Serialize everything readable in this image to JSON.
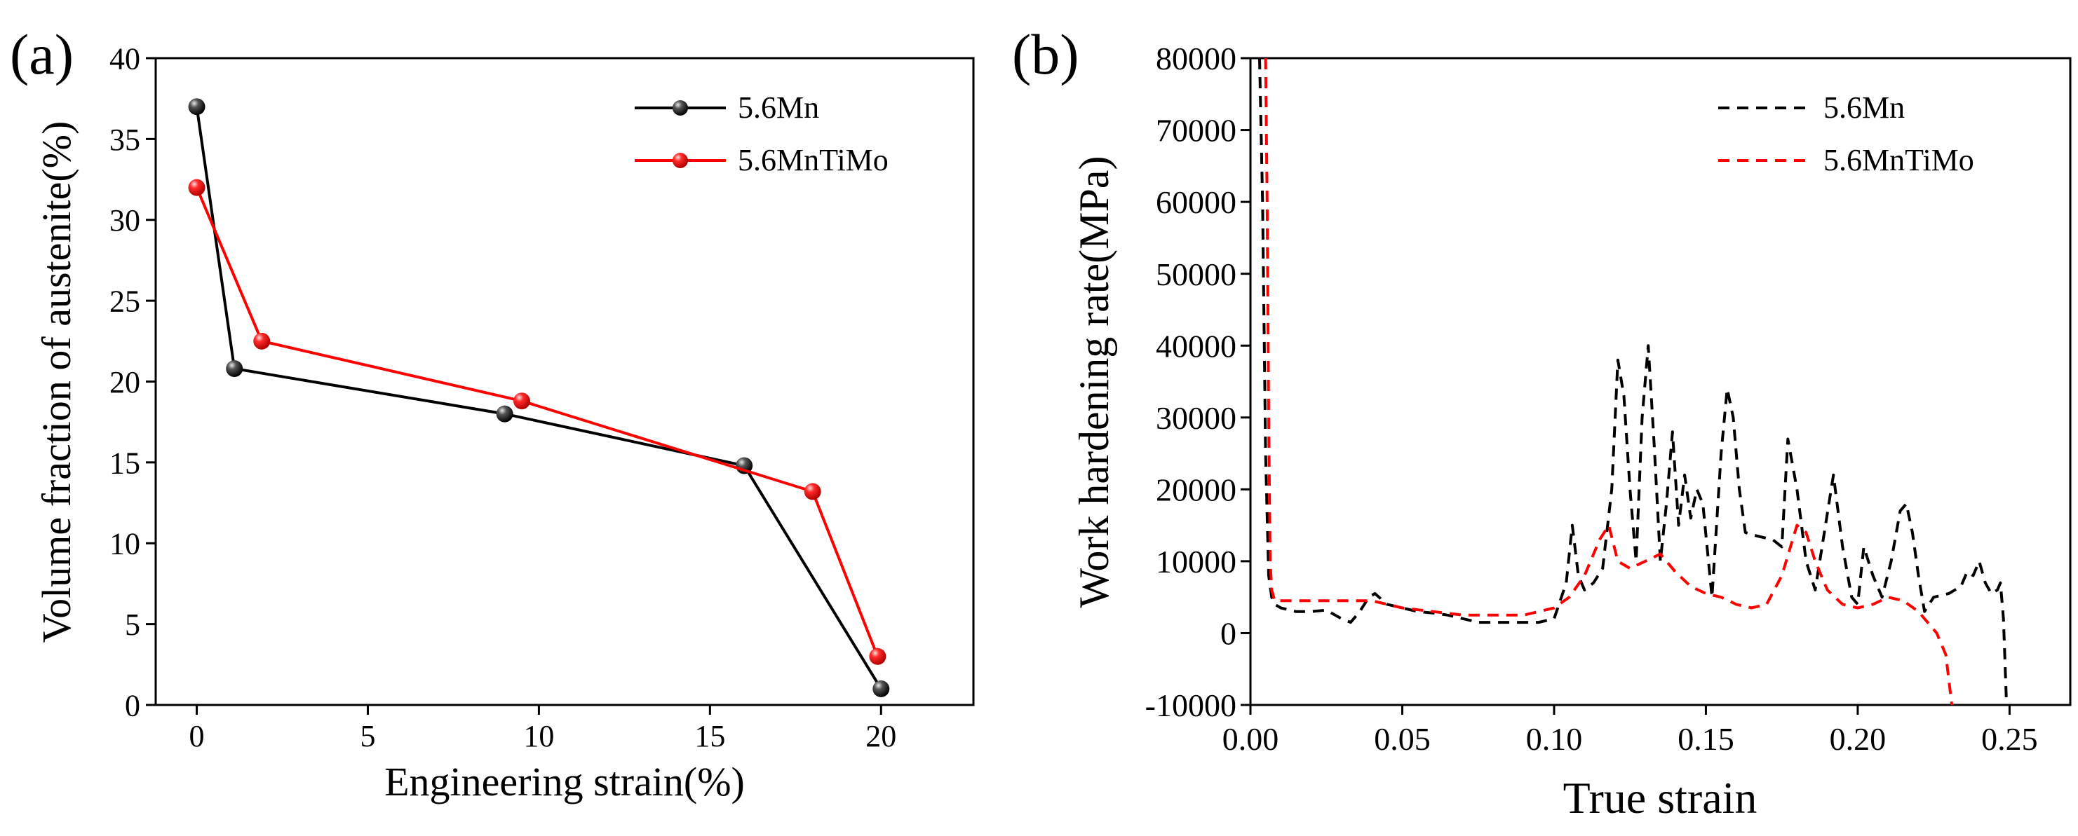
{
  "chart_data": [
    {
      "type": "line",
      "panel_label": "(a)",
      "xlabel": "Engineering strain(%)",
      "ylabel": "Volume fraction of austenite(%)",
      "xlim": [
        -1.2,
        22.7
      ],
      "ylim": [
        0,
        40
      ],
      "xticks": [
        0,
        5,
        10,
        15,
        20
      ],
      "yticks": [
        0,
        5,
        10,
        15,
        20,
        25,
        30,
        35,
        40
      ],
      "xtick_labels": [
        "0",
        "5",
        "10",
        "15",
        "20"
      ],
      "ytick_labels": [
        "0",
        "5",
        "10",
        "15",
        "20",
        "25",
        "30",
        "35",
        "40"
      ],
      "legend": {
        "position": "top-right",
        "entries": [
          "5.6Mn",
          "5.6MnTiMo"
        ]
      },
      "series": [
        {
          "name": "5.6Mn",
          "color": "#000000",
          "marker": "sphere",
          "x": [
            0,
            1.1,
            9,
            16,
            20
          ],
          "y": [
            37,
            20.8,
            18,
            14.8,
            1
          ]
        },
        {
          "name": "5.6MnTiMo",
          "color": "#ff0000",
          "marker": "sphere",
          "x": [
            0,
            1.9,
            9.5,
            18,
            19.9
          ],
          "y": [
            32,
            22.5,
            18.8,
            13.2,
            3
          ]
        }
      ]
    },
    {
      "type": "line",
      "panel_label": "(b)",
      "xlabel": "True strain",
      "ylabel": "Work hardening rate(MPa)",
      "xlim": [
        0,
        0.27
      ],
      "ylim": [
        -10000,
        80000
      ],
      "xticks": [
        0,
        0.05,
        0.1,
        0.15,
        0.2,
        0.25
      ],
      "yticks": [
        -10000,
        0,
        10000,
        20000,
        30000,
        40000,
        50000,
        60000,
        70000,
        80000
      ],
      "xtick_labels": [
        "0.00",
        "0.05",
        "0.10",
        "0.15",
        "0.20",
        "0.25"
      ],
      "ytick_labels": [
        "-10000",
        "0",
        "10000",
        "20000",
        "30000",
        "40000",
        "50000",
        "60000",
        "70000",
        "80000"
      ],
      "legend": {
        "position": "top-right",
        "entries": [
          "5.6Mn",
          "5.6MnTiMo"
        ]
      },
      "series": [
        {
          "name": "5.6Mn",
          "color": "#000000",
          "style": "dashed",
          "x": [
            0.003,
            0.004,
            0.005,
            0.006,
            0.007,
            0.008,
            0.01,
            0.015,
            0.02,
            0.025,
            0.03,
            0.033,
            0.036,
            0.039,
            0.041,
            0.045,
            0.05,
            0.055,
            0.06,
            0.065,
            0.07,
            0.075,
            0.08,
            0.085,
            0.09,
            0.095,
            0.1,
            0.104,
            0.106,
            0.108,
            0.11,
            0.113,
            0.116,
            0.119,
            0.121,
            0.123,
            0.125,
            0.127,
            0.129,
            0.131,
            0.133,
            0.135,
            0.137,
            0.139,
            0.141,
            0.143,
            0.145,
            0.147,
            0.149,
            0.152,
            0.155,
            0.157,
            0.159,
            0.161,
            0.163,
            0.167,
            0.172,
            0.175,
            0.177,
            0.18,
            0.183,
            0.186,
            0.189,
            0.192,
            0.195,
            0.198,
            0.2,
            0.202,
            0.205,
            0.208,
            0.211,
            0.214,
            0.216,
            0.218,
            0.22,
            0.222,
            0.225,
            0.23,
            0.234,
            0.236,
            0.238,
            0.24,
            0.242,
            0.244,
            0.246,
            0.247,
            0.248,
            0.249
          ],
          "y": [
            80000,
            60000,
            25000,
            8000,
            5000,
            4000,
            3500,
            3000,
            3000,
            3200,
            2000,
            1500,
            3000,
            5000,
            5500,
            4000,
            3500,
            3000,
            2800,
            2500,
            2000,
            1500,
            1500,
            1500,
            1500,
            1500,
            2000,
            7000,
            15000,
            8000,
            6000,
            7000,
            9000,
            20000,
            38000,
            33000,
            20000,
            10000,
            30000,
            40000,
            26000,
            10000,
            18000,
            28000,
            15000,
            22000,
            16000,
            20000,
            18000,
            5000,
            25000,
            34000,
            30000,
            20000,
            14000,
            13500,
            13000,
            12000,
            27000,
            20000,
            10000,
            6000,
            14000,
            22000,
            12000,
            5000,
            4000,
            12000,
            8000,
            5000,
            10000,
            17000,
            18000,
            14000,
            8000,
            3000,
            5000,
            5500,
            6500,
            8500,
            8000,
            10000,
            7000,
            5500,
            6000,
            7000,
            2000,
            -10000
          ]
        },
        {
          "name": "5.6MnTiMo",
          "color": "#ff0000",
          "style": "dashed",
          "x": [
            0.005,
            0.0055,
            0.006,
            0.0065,
            0.007,
            0.008,
            0.01,
            0.02,
            0.03,
            0.04,
            0.05,
            0.06,
            0.07,
            0.08,
            0.09,
            0.1,
            0.105,
            0.11,
            0.115,
            0.118,
            0.121,
            0.125,
            0.13,
            0.135,
            0.14,
            0.145,
            0.15,
            0.155,
            0.16,
            0.165,
            0.17,
            0.175,
            0.18,
            0.183,
            0.186,
            0.19,
            0.195,
            0.2,
            0.205,
            0.21,
            0.215,
            0.22,
            0.223,
            0.226,
            0.229,
            0.231
          ],
          "y": [
            80000,
            60000,
            30000,
            10000,
            6000,
            4500,
            4500,
            4500,
            4500,
            4500,
            3500,
            3000,
            2500,
            2500,
            2500,
            3500,
            5000,
            8000,
            13000,
            15000,
            10000,
            9000,
            10000,
            11000,
            8500,
            6500,
            5500,
            5000,
            4000,
            3500,
            4000,
            8000,
            15000,
            14000,
            10000,
            6000,
            4000,
            3500,
            4000,
            5000,
            4500,
            3000,
            1500,
            0,
            -3000,
            -10000
          ]
        }
      ]
    }
  ]
}
